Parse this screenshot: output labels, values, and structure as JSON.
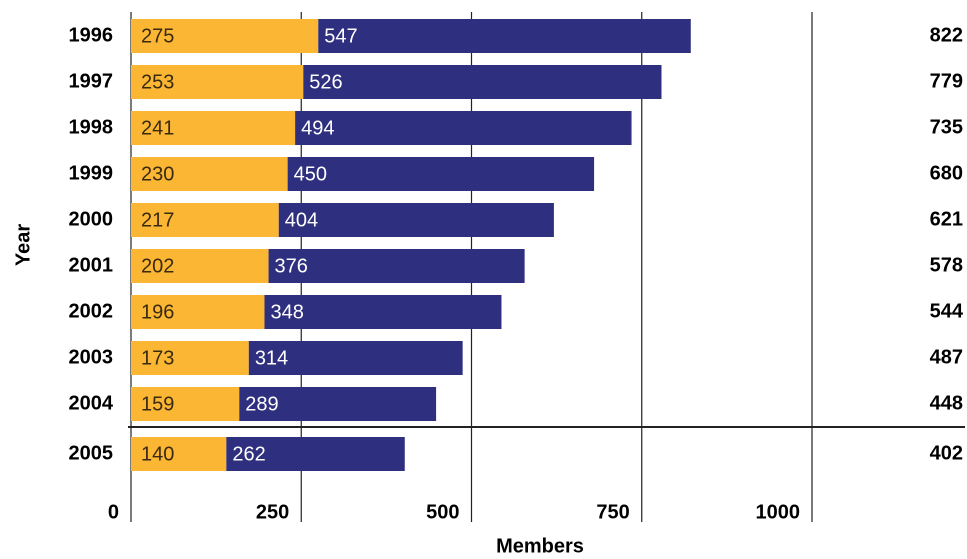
{
  "chart_data": {
    "type": "stacked-bar-horizontal",
    "categories": [
      "1996",
      "1997",
      "1998",
      "1999",
      "2000",
      "2001",
      "2002",
      "2003",
      "2004",
      "2005"
    ],
    "series": [
      {
        "color": "#fbb634",
        "values": [
          275,
          253,
          241,
          230,
          217,
          202,
          196,
          173,
          159,
          140
        ]
      },
      {
        "color": "#2e2f7f",
        "values": [
          547,
          526,
          494,
          450,
          404,
          376,
          348,
          314,
          289,
          262
        ]
      }
    ],
    "totals": [
      822,
      779,
      735,
      680,
      621,
      578,
      544,
      487,
      448,
      402
    ],
    "xlabel": "Members",
    "ylabel": "Year",
    "xlim": [
      0,
      1000
    ],
    "xticks": [
      0,
      250,
      500,
      750,
      1000
    ],
    "grid": true
  }
}
